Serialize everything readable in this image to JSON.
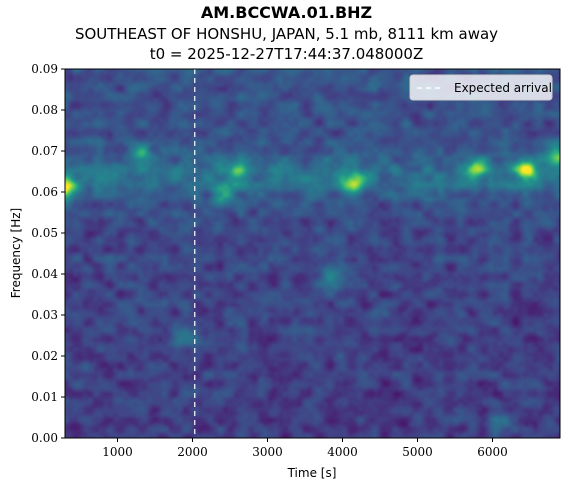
{
  "titles": {
    "line1": "AM.BCCWA.01.BHZ",
    "line2": "SOUTHEAST OF HONSHU, JAPAN, 5.1 mb, 8111 km away",
    "line3": "t0 = 2025-12-27T17:44:37.048000Z"
  },
  "chart_data": {
    "type": "heatmap",
    "colormap": "viridis",
    "xlabel": "Time [s]",
    "ylabel": "Frequency [Hz]",
    "xlim": [
      300,
      6900
    ],
    "ylim": [
      0.0,
      0.09
    ],
    "xticks": [
      1000,
      2000,
      3000,
      4000,
      5000,
      6000
    ],
    "yticks": [
      0.0,
      0.01,
      0.02,
      0.03,
      0.04,
      0.05,
      0.06,
      0.07,
      0.08,
      0.09
    ],
    "ytick_labels": [
      "0.00",
      "0.01",
      "0.02",
      "0.03",
      "0.04",
      "0.05",
      "0.06",
      "0.07",
      "0.08",
      "0.09"
    ],
    "legend": {
      "placement": "top-right",
      "entries": [
        "Expected arrival"
      ]
    },
    "expected_arrival": {
      "x": 2030,
      "style": "dashed",
      "color": "#ffffff"
    },
    "energy_features": [
      {
        "x": 300,
        "y": 0.061,
        "strength": 0.95
      },
      {
        "x": 1300,
        "y": 0.0695,
        "strength": 0.6
      },
      {
        "x": 2600,
        "y": 0.065,
        "strength": 0.65
      },
      {
        "x": 2400,
        "y": 0.059,
        "strength": 0.55
      },
      {
        "x": 4150,
        "y": 0.0625,
        "strength": 0.95
      },
      {
        "x": 5800,
        "y": 0.0655,
        "strength": 0.7
      },
      {
        "x": 6450,
        "y": 0.0655,
        "strength": 1.0
      },
      {
        "x": 6850,
        "y": 0.069,
        "strength": 0.75
      },
      {
        "x": 3850,
        "y": 0.039,
        "strength": 0.45
      },
      {
        "x": 1900,
        "y": 0.024,
        "strength": 0.45
      },
      {
        "x": 6100,
        "y": 0.004,
        "strength": 0.45
      }
    ]
  }
}
